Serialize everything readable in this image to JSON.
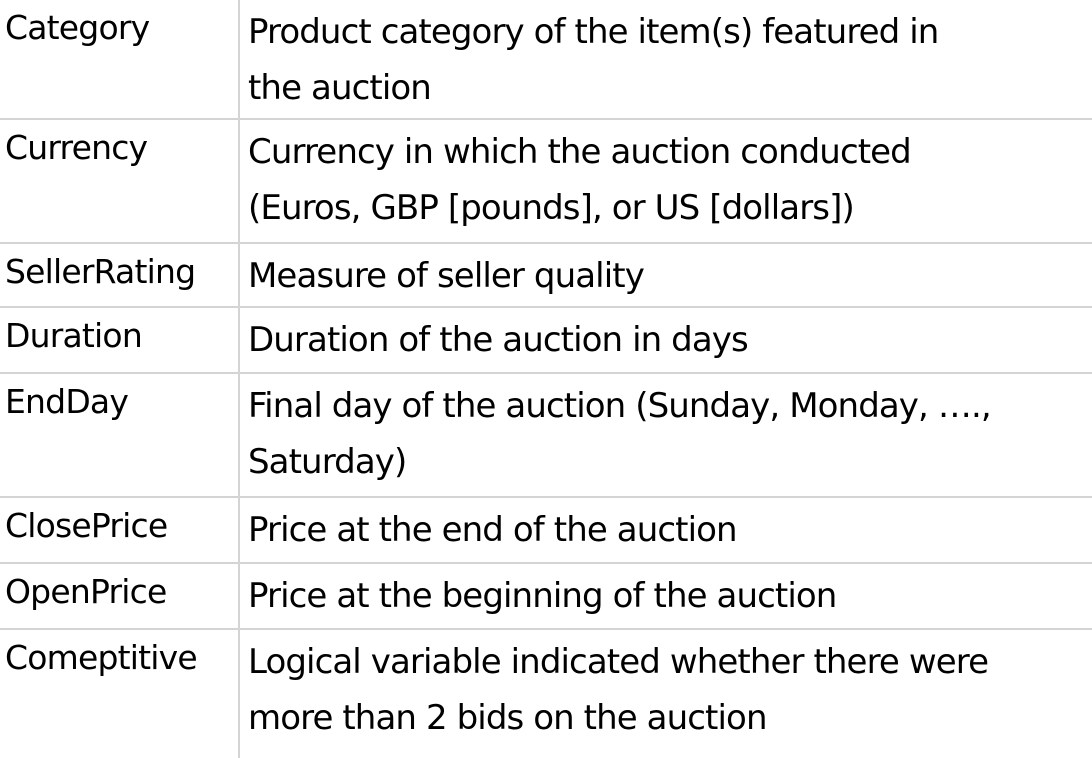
{
  "rows": [
    {
      "name": "Category",
      "description": [
        "Product category of the item(s) featured in",
        "the auction"
      ]
    },
    {
      "name": "Currency",
      "description": [
        "Currency in which the auction conducted",
        "(Euros, GBP [pounds], or US [dollars])"
      ]
    },
    {
      "name": "SellerRating",
      "description": [
        "Measure of seller quality"
      ]
    },
    {
      "name": "Duration",
      "description": [
        "Duration of the auction in days"
      ]
    },
    {
      "name": "EndDay",
      "description": [
        "Final day of the auction (Sunday, Monday, ….,",
        "Saturday)"
      ]
    },
    {
      "name": "ClosePrice",
      "description": [
        "Price at the end of the auction"
      ]
    },
    {
      "name": "OpenPrice",
      "description": [
        "Price at the beginning of the auction"
      ]
    },
    {
      "name": "Comeptitive",
      "description": [
        "Logical variable indicated whether there were",
        "more than 2 bids on the auction"
      ]
    }
  ],
  "colors": {
    "grid_line": "#d4d4d4",
    "text": "#000000",
    "background": "#ffffff"
  }
}
